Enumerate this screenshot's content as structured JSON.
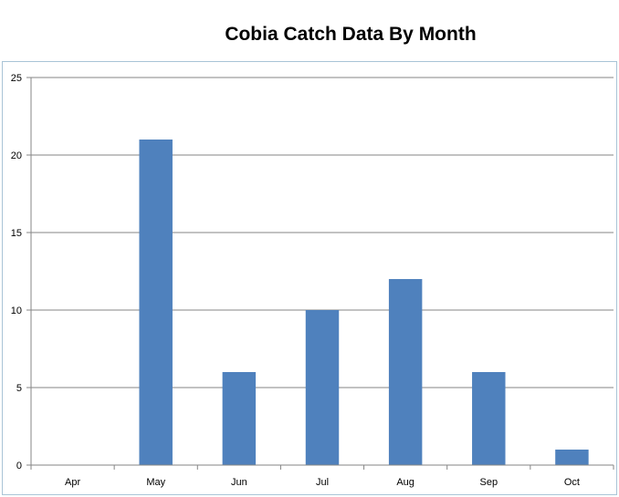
{
  "chart_data": {
    "type": "bar",
    "title": "Cobia Catch Data By Month",
    "xlabel": "",
    "ylabel": "",
    "categories": [
      "Apr",
      "May",
      "Jun",
      "Jul",
      "Aug",
      "Sep",
      "Oct"
    ],
    "values": [
      0,
      21,
      6,
      10,
      12,
      6,
      1
    ],
    "yticks": [
      "0",
      "5",
      "10",
      "15",
      "20",
      "25"
    ],
    "ylim": [
      0,
      25
    ],
    "grid": true,
    "legend": "none",
    "bar_color": "#4f81bd",
    "gridline_color": "#868686"
  }
}
